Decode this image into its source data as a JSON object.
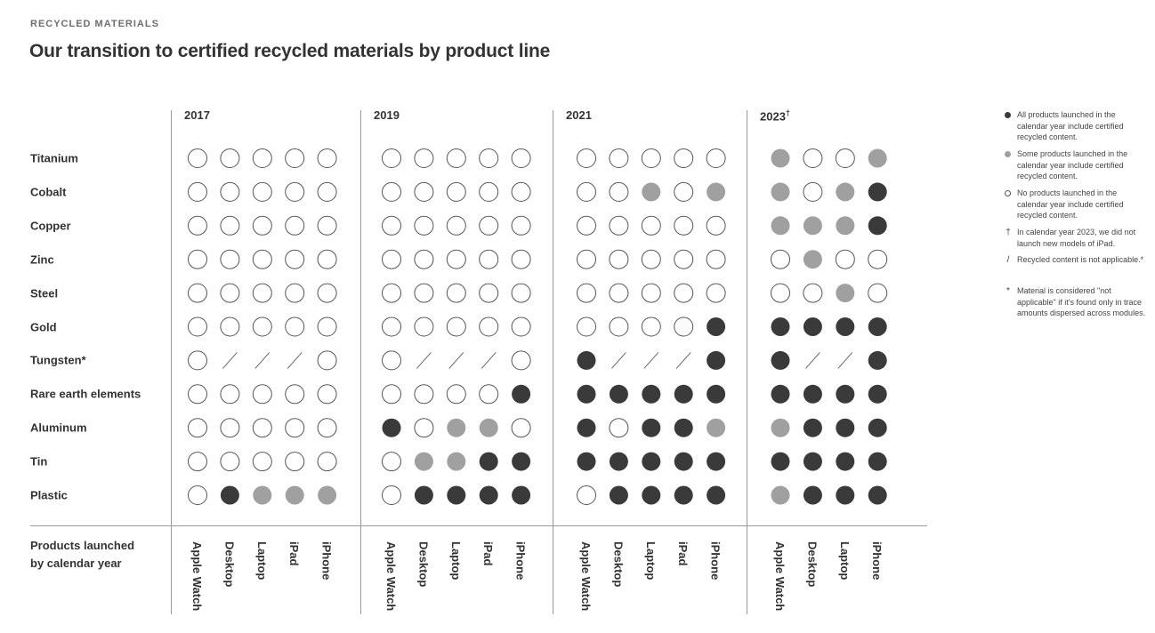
{
  "header": {
    "eyebrow": "RECYCLED MATERIALS",
    "title": "Our transition to certified recycled materials by product line"
  },
  "chart_data": {
    "type": "table",
    "materials": [
      "Titanium",
      "Cobalt",
      "Copper",
      "Zinc",
      "Steel",
      "Gold",
      "Tungsten*",
      "Rare earth elements",
      "Aluminum",
      "Tin",
      "Plastic"
    ],
    "years": [
      {
        "label": "2017",
        "mark": "",
        "products": [
          "Apple Watch",
          "Desktop",
          "Laptop",
          "iPad",
          "iPhone"
        ],
        "values": [
          [
            "none",
            "none",
            "none",
            "none",
            "none"
          ],
          [
            "none",
            "none",
            "none",
            "none",
            "none"
          ],
          [
            "none",
            "none",
            "none",
            "none",
            "none"
          ],
          [
            "none",
            "none",
            "none",
            "none",
            "none"
          ],
          [
            "none",
            "none",
            "none",
            "none",
            "none"
          ],
          [
            "none",
            "none",
            "none",
            "none",
            "none"
          ],
          [
            "none",
            "na",
            "na",
            "na",
            "none"
          ],
          [
            "none",
            "none",
            "none",
            "none",
            "none"
          ],
          [
            "none",
            "none",
            "none",
            "none",
            "none"
          ],
          [
            "none",
            "none",
            "none",
            "none",
            "none"
          ],
          [
            "none",
            "all",
            "some",
            "some",
            "some"
          ]
        ]
      },
      {
        "label": "2019",
        "mark": "",
        "products": [
          "Apple Watch",
          "Desktop",
          "Laptop",
          "iPad",
          "iPhone"
        ],
        "values": [
          [
            "none",
            "none",
            "none",
            "none",
            "none"
          ],
          [
            "none",
            "none",
            "none",
            "none",
            "none"
          ],
          [
            "none",
            "none",
            "none",
            "none",
            "none"
          ],
          [
            "none",
            "none",
            "none",
            "none",
            "none"
          ],
          [
            "none",
            "none",
            "none",
            "none",
            "none"
          ],
          [
            "none",
            "none",
            "none",
            "none",
            "none"
          ],
          [
            "none",
            "na",
            "na",
            "na",
            "none"
          ],
          [
            "none",
            "none",
            "none",
            "none",
            "all"
          ],
          [
            "all",
            "none",
            "some",
            "some",
            "none"
          ],
          [
            "none",
            "some",
            "some",
            "all",
            "all"
          ],
          [
            "none",
            "all",
            "all",
            "all",
            "all"
          ]
        ]
      },
      {
        "label": "2021",
        "mark": "",
        "products": [
          "Apple Watch",
          "Desktop",
          "Laptop",
          "iPad",
          "iPhone"
        ],
        "values": [
          [
            "none",
            "none",
            "none",
            "none",
            "none"
          ],
          [
            "none",
            "none",
            "some",
            "none",
            "some"
          ],
          [
            "none",
            "none",
            "none",
            "none",
            "none"
          ],
          [
            "none",
            "none",
            "none",
            "none",
            "none"
          ],
          [
            "none",
            "none",
            "none",
            "none",
            "none"
          ],
          [
            "none",
            "none",
            "none",
            "none",
            "all"
          ],
          [
            "all",
            "na",
            "na",
            "na",
            "all"
          ],
          [
            "all",
            "all",
            "all",
            "all",
            "all"
          ],
          [
            "all",
            "none",
            "all",
            "all",
            "some"
          ],
          [
            "all",
            "all",
            "all",
            "all",
            "all"
          ],
          [
            "none",
            "all",
            "all",
            "all",
            "all"
          ]
        ]
      },
      {
        "label": "2023",
        "mark": "†",
        "products": [
          "Apple Watch",
          "Desktop",
          "Laptop",
          "iPhone"
        ],
        "values": [
          [
            "some",
            "none",
            "none",
            "some"
          ],
          [
            "some",
            "none",
            "some",
            "all"
          ],
          [
            "some",
            "some",
            "some",
            "all"
          ],
          [
            "none",
            "some",
            "none",
            "none"
          ],
          [
            "none",
            "none",
            "some",
            "none"
          ],
          [
            "all",
            "all",
            "all",
            "all"
          ],
          [
            "all",
            "na",
            "na",
            "all"
          ],
          [
            "all",
            "all",
            "all",
            "all"
          ],
          [
            "some",
            "all",
            "all",
            "all"
          ],
          [
            "all",
            "all",
            "all",
            "all"
          ],
          [
            "some",
            "all",
            "all",
            "all"
          ]
        ]
      }
    ],
    "footer_label": "Products launched\nby calendar year",
    "colors": {
      "all": "#3a3a3a",
      "some": "#a0a0a0",
      "none_stroke": "#555555",
      "na_stroke": "#666666"
    }
  },
  "legend": [
    {
      "symbol": "all-dot",
      "text": "All products launched in the calendar year include certified recycled content."
    },
    {
      "symbol": "some-dot",
      "text": "Some products launched in the calendar year include certified recycled content."
    },
    {
      "symbol": "none-dot",
      "text": "No products launched in the calendar year include certified recycled content."
    },
    {
      "symbol": "†",
      "text": "In calendar year 2023, we did not launch new models of iPad."
    },
    {
      "symbol": "/",
      "text": "Recycled content is not applicable.*"
    },
    {
      "symbol": "*",
      "text": "Material is considered \"not applicable\" if it's found only in trace amounts dispersed across modules."
    }
  ]
}
